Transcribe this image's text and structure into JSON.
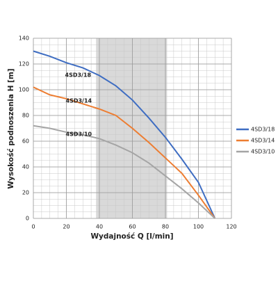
{
  "chart_data": {
    "type": "line",
    "x_label": "Wydajność Q [l/min]",
    "y_label": "Wysokość podnoszenia H [m]",
    "x": [
      0,
      10,
      20,
      30,
      40,
      50,
      60,
      70,
      80,
      90,
      100,
      110
    ],
    "series": [
      {
        "name": "4SD3/18",
        "color": "#3e6dc2",
        "values": [
          130,
          126,
          121,
          117,
          111,
          103,
          92,
          78,
          63,
          46,
          28,
          0
        ]
      },
      {
        "name": "4SD3/14",
        "color": "#ed7d31",
        "values": [
          102,
          96,
          93,
          89,
          85,
          80,
          70,
          59,
          47,
          35,
          18,
          0
        ]
      },
      {
        "name": "4SD3/10",
        "color": "#a5a5a5",
        "values": [
          72,
          70,
          67,
          65,
          62,
          57,
          51,
          43,
          33,
          23,
          12,
          0
        ]
      }
    ],
    "xlim": [
      0,
      120
    ],
    "xticks": [
      0,
      20,
      40,
      60,
      80,
      100,
      120
    ],
    "ylim": [
      0,
      140
    ],
    "yticks": [
      0,
      20,
      40,
      60,
      80,
      100,
      120,
      140
    ],
    "minor_grid": 5,
    "shaded_range": [
      38,
      81
    ],
    "grid": true,
    "legend": "right"
  }
}
